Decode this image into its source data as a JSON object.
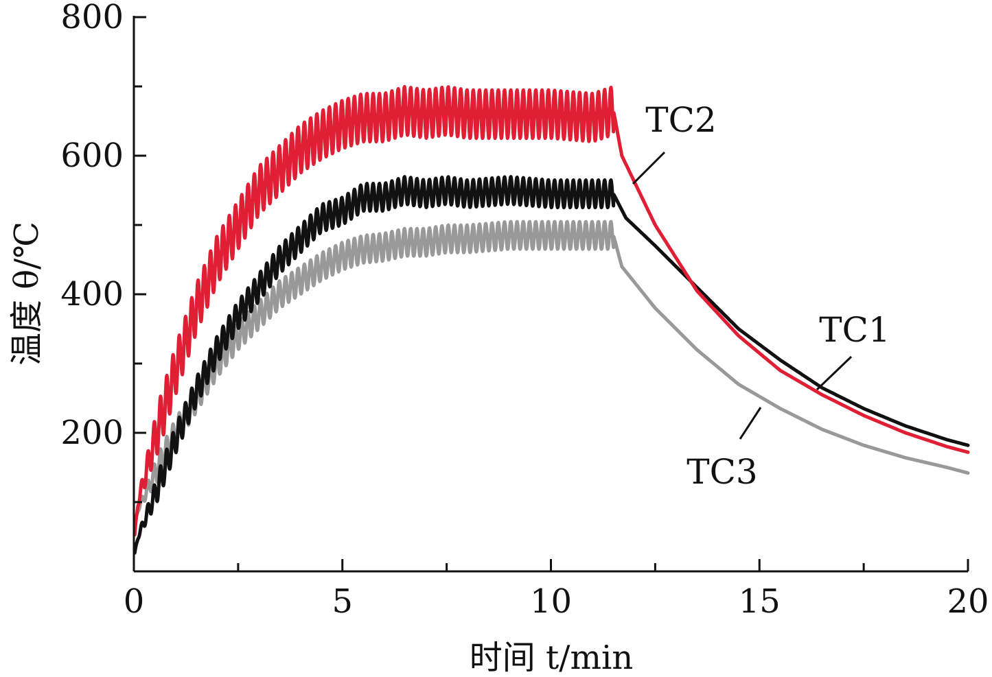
{
  "chart_data": {
    "type": "line",
    "xlabel": "时间 t/min",
    "ylabel": "温度 θ/℃",
    "xlim": [
      0,
      20
    ],
    "ylim": [
      0,
      800
    ],
    "x_ticks": [
      "0",
      "5",
      "10",
      "15",
      "20"
    ],
    "y_ticks": [
      "200",
      "400",
      "600",
      "800"
    ],
    "grid": false,
    "legend": "none",
    "series": [
      {
        "name": "TC1",
        "color": "#111111",
        "oscillation": {
          "amplitude": 20,
          "period": 0.15
        },
        "points": [
          [
            0,
            20
          ],
          [
            0.1,
            50
          ],
          [
            0.5,
            110
          ],
          [
            1,
            190
          ],
          [
            1.5,
            260
          ],
          [
            2,
            320
          ],
          [
            2.5,
            370
          ],
          [
            3,
            410
          ],
          [
            3.5,
            450
          ],
          [
            4,
            480
          ],
          [
            4.5,
            510
          ],
          [
            5,
            520
          ],
          [
            5.5,
            540
          ],
          [
            6,
            540
          ],
          [
            6.5,
            550
          ],
          [
            7,
            545
          ],
          [
            7.5,
            550
          ],
          [
            8,
            545
          ],
          [
            9,
            550
          ],
          [
            10,
            545
          ],
          [
            11,
            545
          ],
          [
            11.5,
            545
          ],
          [
            11.8,
            510
          ],
          [
            12.5,
            470
          ],
          [
            13.5,
            410
          ],
          [
            14.5,
            350
          ],
          [
            15.5,
            305
          ],
          [
            16.5,
            265
          ],
          [
            17.5,
            235
          ],
          [
            18.5,
            210
          ],
          [
            19.5,
            190
          ],
          [
            20,
            182
          ]
        ]
      },
      {
        "name": "TC2",
        "color": "#e01f35",
        "oscillation": {
          "amplitude": 35,
          "period": 0.15
        },
        "points": [
          [
            0,
            40
          ],
          [
            0.1,
            100
          ],
          [
            0.5,
            190
          ],
          [
            1,
            290
          ],
          [
            1.5,
            380
          ],
          [
            2,
            450
          ],
          [
            2.5,
            500
          ],
          [
            3,
            550
          ],
          [
            3.5,
            580
          ],
          [
            4,
            610
          ],
          [
            4.5,
            630
          ],
          [
            5,
            645
          ],
          [
            5.5,
            655
          ],
          [
            6,
            655
          ],
          [
            6.5,
            665
          ],
          [
            7,
            660
          ],
          [
            7.5,
            665
          ],
          [
            8,
            660
          ],
          [
            9,
            660
          ],
          [
            10,
            660
          ],
          [
            11,
            655
          ],
          [
            11.5,
            665
          ],
          [
            11.7,
            600
          ],
          [
            12.5,
            500
          ],
          [
            13.5,
            405
          ],
          [
            14.5,
            340
          ],
          [
            15.5,
            290
          ],
          [
            16.5,
            255
          ],
          [
            17.5,
            225
          ],
          [
            18.5,
            200
          ],
          [
            19.5,
            180
          ],
          [
            20,
            172
          ]
        ]
      },
      {
        "name": "TC3",
        "color": "#999999",
        "oscillation": {
          "amplitude": 20,
          "period": 0.15
        },
        "points": [
          [
            0,
            60
          ],
          [
            0.1,
            90
          ],
          [
            0.5,
            140
          ],
          [
            1,
            200
          ],
          [
            1.5,
            250
          ],
          [
            2,
            300
          ],
          [
            2.5,
            340
          ],
          [
            3,
            370
          ],
          [
            3.5,
            400
          ],
          [
            4,
            420
          ],
          [
            4.5,
            440
          ],
          [
            5,
            455
          ],
          [
            5.5,
            465
          ],
          [
            6,
            468
          ],
          [
            6.5,
            475
          ],
          [
            7,
            475
          ],
          [
            7.5,
            480
          ],
          [
            8,
            480
          ],
          [
            9,
            485
          ],
          [
            10,
            485
          ],
          [
            11,
            485
          ],
          [
            11.5,
            485
          ],
          [
            11.7,
            440
          ],
          [
            12.5,
            380
          ],
          [
            13.5,
            320
          ],
          [
            14.5,
            270
          ],
          [
            15.5,
            235
          ],
          [
            16.5,
            205
          ],
          [
            17.5,
            182
          ],
          [
            18.5,
            164
          ],
          [
            19.5,
            150
          ],
          [
            20,
            142
          ]
        ]
      }
    ],
    "annotations": [
      {
        "text": "TC2",
        "series": "TC2",
        "at": [
          12.1,
          560
        ]
      },
      {
        "text": "TC1",
        "series": "TC1",
        "at": [
          16.6,
          260
        ]
      },
      {
        "text": "TC3",
        "series": "TC3",
        "at": [
          14.4,
          230
        ]
      }
    ]
  }
}
